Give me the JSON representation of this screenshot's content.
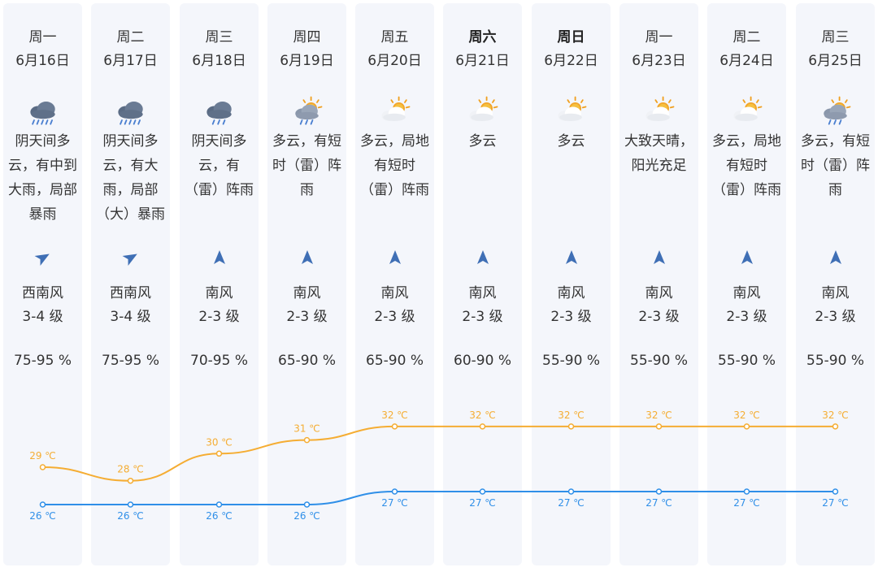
{
  "colors": {
    "high": "#f5ad33",
    "low": "#2f8fe8",
    "arrow": "#3f6fb5"
  },
  "days": [
    {
      "dow": "周一",
      "date": "6月16日",
      "desc": "阴天间多\n云，有中到\n大雨，局部\n暴雨",
      "icon": "cloud-heavy-rain-icon",
      "wind_dir_deg": 60,
      "wind": "西南风\n3-4 级",
      "humidity": "75-95 %",
      "high": 29,
      "low": 26,
      "high_label": "29 ℃",
      "low_label": "26 ℃",
      "weekend": false
    },
    {
      "dow": "周二",
      "date": "6月17日",
      "desc": "阴天间多\n云，有大\n雨，局部\n（大）暴雨",
      "icon": "cloud-heavy-rain-icon",
      "wind_dir_deg": 60,
      "wind": "西南风\n3-4 级",
      "humidity": "75-95 %",
      "high": 28,
      "low": 26,
      "high_label": "28 ℃",
      "low_label": "26 ℃",
      "weekend": false
    },
    {
      "dow": "周三",
      "date": "6月18日",
      "desc": "阴天间多\n云，有\n（雷）阵雨",
      "icon": "cloud-rain-icon",
      "wind_dir_deg": 0,
      "wind": "南风\n2-3 级",
      "humidity": "70-95 %",
      "high": 30,
      "low": 26,
      "high_label": "30 ℃",
      "low_label": "26 ℃",
      "weekend": false
    },
    {
      "dow": "周四",
      "date": "6月19日",
      "desc": "多云，有短\n时（雷）阵\n雨",
      "icon": "sun-cloud-rain-icon",
      "wind_dir_deg": 0,
      "wind": "南风\n2-3 级",
      "humidity": "65-90 %",
      "high": 31,
      "low": 26,
      "high_label": "31 ℃",
      "low_label": "26 ℃",
      "weekend": false
    },
    {
      "dow": "周五",
      "date": "6月20日",
      "desc": "多云，局地\n有短时\n（雷）阵雨",
      "icon": "sun-cloud-icon",
      "wind_dir_deg": 0,
      "wind": "南风\n2-3 级",
      "humidity": "65-90 %",
      "high": 32,
      "low": 27,
      "high_label": "32 ℃",
      "low_label": "27 ℃",
      "weekend": false
    },
    {
      "dow": "周六",
      "date": "6月21日",
      "desc": "多云",
      "icon": "sun-cloud-icon",
      "wind_dir_deg": 0,
      "wind": "南风\n2-3 级",
      "humidity": "60-90 %",
      "high": 32,
      "low": 27,
      "high_label": "32 ℃",
      "low_label": "27 ℃",
      "weekend": true
    },
    {
      "dow": "周日",
      "date": "6月22日",
      "desc": "多云",
      "icon": "sun-cloud-icon",
      "wind_dir_deg": 0,
      "wind": "南风\n2-3 级",
      "humidity": "55-90 %",
      "high": 32,
      "low": 27,
      "high_label": "32 ℃",
      "low_label": "27 ℃",
      "weekend": true
    },
    {
      "dow": "周一",
      "date": "6月23日",
      "desc": "大致天晴，\n阳光充足",
      "icon": "sun-cloud-icon",
      "wind_dir_deg": 0,
      "wind": "南风\n2-3 级",
      "humidity": "55-90 %",
      "high": 32,
      "low": 27,
      "high_label": "32 ℃",
      "low_label": "27 ℃",
      "weekend": false
    },
    {
      "dow": "周二",
      "date": "6月24日",
      "desc": "多云，局地\n有短时\n（雷）阵雨",
      "icon": "sun-cloud-icon",
      "wind_dir_deg": 0,
      "wind": "南风\n2-3 级",
      "humidity": "55-90 %",
      "high": 32,
      "low": 27,
      "high_label": "32 ℃",
      "low_label": "27 ℃",
      "weekend": false
    },
    {
      "dow": "周三",
      "date": "6月25日",
      "desc": "多云，有短\n时（雷）阵\n雨",
      "icon": "sun-cloud-rain-icon",
      "wind_dir_deg": 0,
      "wind": "南风\n2-3 级",
      "humidity": "55-90 %",
      "high": 32,
      "low": 27,
      "high_label": "32 ℃",
      "low_label": "27 ℃",
      "weekend": false
    }
  ]
}
